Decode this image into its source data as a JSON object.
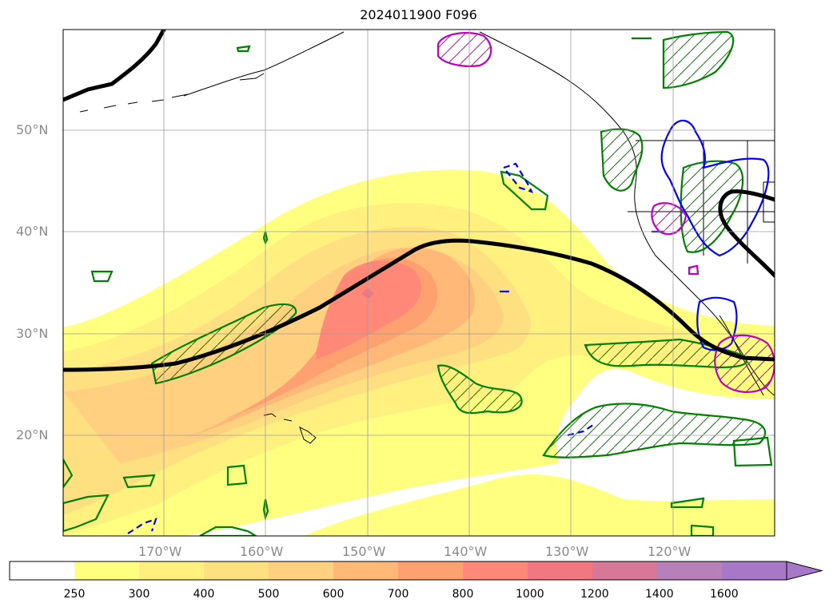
{
  "title": "2024011900 F096",
  "lat_labels": [
    "50°N",
    "40°N",
    "30°N",
    "20°N"
  ],
  "lon_labels": [
    "170°W",
    "160°W",
    "150°W",
    "140°W",
    "130°W",
    "120°W"
  ],
  "colorbar": {
    "levels": [
      "250",
      "300",
      "400",
      "500",
      "600",
      "700",
      "800",
      "1000",
      "1200",
      "1400",
      "1600"
    ],
    "colors": [
      "#ffffff",
      "#ffff80",
      "#fff080",
      "#ffe080",
      "#ffd080",
      "#ffb878",
      "#ffa070",
      "#ff8878",
      "#f07880",
      "#d87898",
      "#b880b8",
      "#a878c8"
    ]
  },
  "colors": {
    "jet_axis": "#000000",
    "green_contour": "#008000",
    "blue_contour": "#0000ff",
    "magenta_contour": "#c000c0"
  }
}
